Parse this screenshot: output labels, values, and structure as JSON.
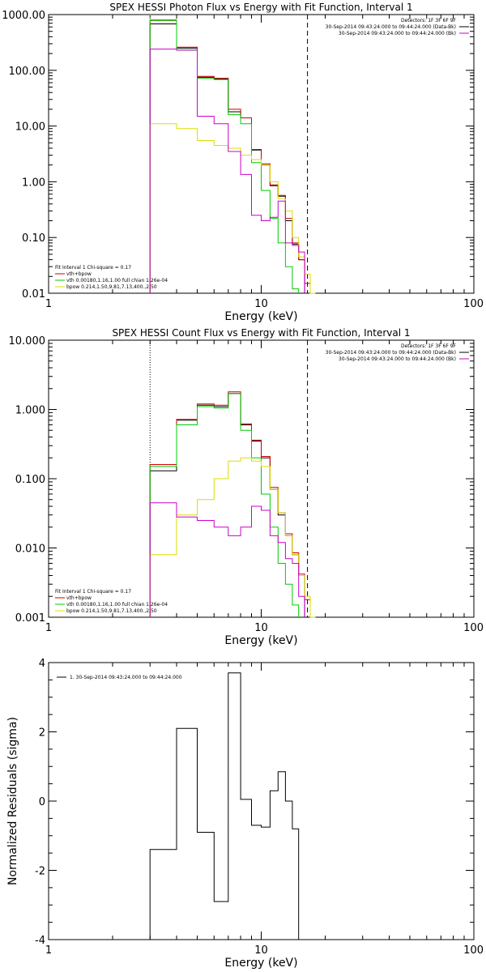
{
  "colors": {
    "data": "#000000",
    "total": "#cc0000",
    "vth": "#00cc00",
    "bpow": "#dddd00",
    "background": "#cc00cc"
  },
  "chart_data": [
    {
      "id": "photon",
      "type": "line",
      "title": "SPEX HESSI Photon Flux vs Energy with Fit Function, Interval 1",
      "xlabel": "Energy (keV)",
      "ylabel": "",
      "xscale": "log",
      "yscale": "log",
      "xlim": [
        1,
        100
      ],
      "ylim": [
        0.01,
        1000
      ],
      "xticks": [
        {
          "v": 1,
          "t": "1"
        },
        {
          "v": 10,
          "t": "10"
        },
        {
          "v": 100,
          "t": "100"
        }
      ],
      "yticks": [
        {
          "v": 1000,
          "t": "1000.00"
        },
        {
          "v": 100,
          "t": "100.00"
        },
        {
          "v": 10,
          "t": "10.00"
        },
        {
          "v": 1,
          "t": "1.00"
        },
        {
          "v": 0.1,
          "t": "0.10"
        },
        {
          "v": 0.01,
          "t": "0.01"
        }
      ],
      "vlines": [
        {
          "x": 3.0,
          "style": "dotted",
          "color": "bpow"
        },
        {
          "x": 16.5,
          "style": "dashed",
          "color": "data"
        }
      ],
      "legend_top_right": [
        "Detectors: 1F 3F 6F 9F",
        "30-Sep-2014 09:43:24.000 to 09:44:24.000 (Data-Bk)",
        "30-Sep-2014 09:43:24.000 to 09:44:24.000 (Bk)"
      ],
      "legend_bottom_left": [
        "Fit Interval 1    Chi-square = 0.17",
        "vth+bpow",
        "vth 0.00180,1.16,1.00  full chian 1.26e-04",
        "bpow 0.214,1.50,9.81,7.13,400.,2.50"
      ],
      "edges": [
        3.0,
        4.0,
        5.0,
        6.0,
        7.0,
        8.0,
        9.0,
        10.0,
        11.0,
        12.0,
        13.0,
        14.0,
        15.0,
        16.0,
        17.0,
        18.0,
        20.0
      ],
      "series": [
        {
          "name": "data",
          "color": "data",
          "values": [
            680,
            250,
            75,
            70,
            18,
            14,
            3.7,
            2.0,
            0.85,
            0.55,
            0.2,
            0.076,
            0.04
          ]
        },
        {
          "name": "total",
          "color": "total",
          "values": [
            800,
            260,
            78,
            72,
            20,
            14,
            3.8,
            2.1,
            0.88,
            0.57,
            0.22,
            0.08,
            0.04,
            0.015
          ]
        },
        {
          "name": "vth",
          "color": "vth",
          "values": [
            780,
            230,
            72,
            68,
            16,
            11,
            2.2,
            0.7,
            0.22,
            0.08,
            0.03,
            0.012
          ]
        },
        {
          "name": "bpow",
          "color": "bpow",
          "values": [
            11,
            9,
            5.5,
            4.5,
            4.0,
            3.0,
            2.5,
            2.0,
            1.0,
            0.5,
            0.3,
            0.1,
            0.045,
            0.022,
            0.01
          ]
        },
        {
          "name": "background",
          "color": "background",
          "values": [
            240,
            230,
            15,
            11,
            3.5,
            1.35,
            0.25,
            0.2,
            0.23,
            0.45,
            0.08,
            0.072,
            0.055
          ]
        }
      ]
    },
    {
      "id": "count",
      "type": "line",
      "title": "SPEX HESSI Count Flux vs Energy with Fit Function, Interval 1",
      "xlabel": "Energy (keV)",
      "ylabel": "",
      "xscale": "log",
      "yscale": "log",
      "xlim": [
        1,
        100
      ],
      "ylim": [
        0.001,
        10
      ],
      "xticks": [
        {
          "v": 1,
          "t": "1"
        },
        {
          "v": 10,
          "t": "10"
        },
        {
          "v": 100,
          "t": "100"
        }
      ],
      "yticks": [
        {
          "v": 10,
          "t": "10.000"
        },
        {
          "v": 1,
          "t": "1.000"
        },
        {
          "v": 0.1,
          "t": "0.100"
        },
        {
          "v": 0.01,
          "t": "0.010"
        },
        {
          "v": 0.001,
          "t": "0.001"
        }
      ],
      "vlines": [
        {
          "x": 3.0,
          "style": "dotted",
          "color": "data"
        },
        {
          "x": 16.5,
          "style": "dashed",
          "color": "data"
        }
      ],
      "legend_top_right": [
        "Detectors: 1F 3F 6F 9F",
        "30-Sep-2014 09:43:24.000 to 09:44:24.000 (Data-Bk)",
        "30-Sep-2014 09:43:24.000 to 09:44:24.000 (Bk)"
      ],
      "legend_bottom_left": [
        "Fit Interval 1    Chi-square = 0.17",
        "vth+bpow",
        "vth 0.00180,1.16,1.00  full chian 1.26e-04",
        "bpow 0.214,1.50,9.81,7.13,400.,2.50"
      ],
      "edges": [
        3.0,
        4.0,
        5.0,
        6.0,
        7.0,
        8.0,
        9.0,
        10.0,
        11.0,
        12.0,
        13.0,
        14.0,
        15.0,
        16.0,
        17.0,
        18.0,
        20.0,
        22.0
      ],
      "series": [
        {
          "name": "data",
          "color": "data",
          "values": [
            0.13,
            0.7,
            1.15,
            1.1,
            1.7,
            0.6,
            0.35,
            0.2,
            0.07,
            0.03,
            0.015,
            0.008,
            0.004
          ]
        },
        {
          "name": "total",
          "color": "total",
          "values": [
            0.16,
            0.72,
            1.2,
            1.15,
            1.8,
            0.62,
            0.36,
            0.21,
            0.075,
            0.032,
            0.016,
            0.0085,
            0.0042,
            0.0018
          ]
        },
        {
          "name": "vth",
          "color": "vth",
          "values": [
            0.15,
            0.6,
            1.1,
            1.05,
            1.7,
            0.5,
            0.2,
            0.06,
            0.02,
            0.006,
            0.003,
            0.0015
          ]
        },
        {
          "name": "bpow",
          "color": "bpow",
          "values": [
            0.008,
            0.03,
            0.05,
            0.1,
            0.18,
            0.2,
            0.18,
            0.15,
            0.07,
            0.032,
            0.015,
            0.008,
            0.004,
            0.002,
            0.001
          ]
        },
        {
          "name": "background",
          "color": "background",
          "values": [
            0.045,
            0.028,
            0.025,
            0.02,
            0.015,
            0.02,
            0.04,
            0.035,
            0.015,
            0.012,
            0.007,
            0.006,
            0.002
          ]
        }
      ]
    },
    {
      "id": "residuals",
      "type": "line",
      "title": "",
      "xlabel": "Energy (keV)",
      "ylabel": "Normalized Residuals (sigma)",
      "xscale": "log",
      "yscale": "linear",
      "xlim": [
        1,
        100
      ],
      "ylim": [
        -4,
        4
      ],
      "xticks": [
        {
          "v": 1,
          "t": "1"
        },
        {
          "v": 10,
          "t": "10"
        },
        {
          "v": 100,
          "t": "100"
        }
      ],
      "yticks": [
        {
          "v": 4,
          "t": "4"
        },
        {
          "v": 2,
          "t": "2"
        },
        {
          "v": 0,
          "t": "0"
        },
        {
          "v": -2,
          "t": "-2"
        },
        {
          "v": -4,
          "t": "-4"
        }
      ],
      "vlines": [],
      "legend_top_left": [
        "1. 30-Sep-2014 09:43:24.000 to 09:44:24.000"
      ],
      "edges": [
        3.0,
        4.0,
        5.0,
        6.0,
        7.0,
        8.0,
        9.0,
        10.0,
        11.0,
        12.0,
        13.0,
        14.0,
        15.0,
        16.5
      ],
      "series": [
        {
          "name": "residuals",
          "color": "data",
          "values": [
            -1.4,
            2.1,
            -0.9,
            -2.9,
            3.7,
            0.05,
            -0.7,
            -0.75,
            0.3,
            0.85,
            0.0,
            -0.8,
            -4.0
          ]
        }
      ]
    }
  ]
}
